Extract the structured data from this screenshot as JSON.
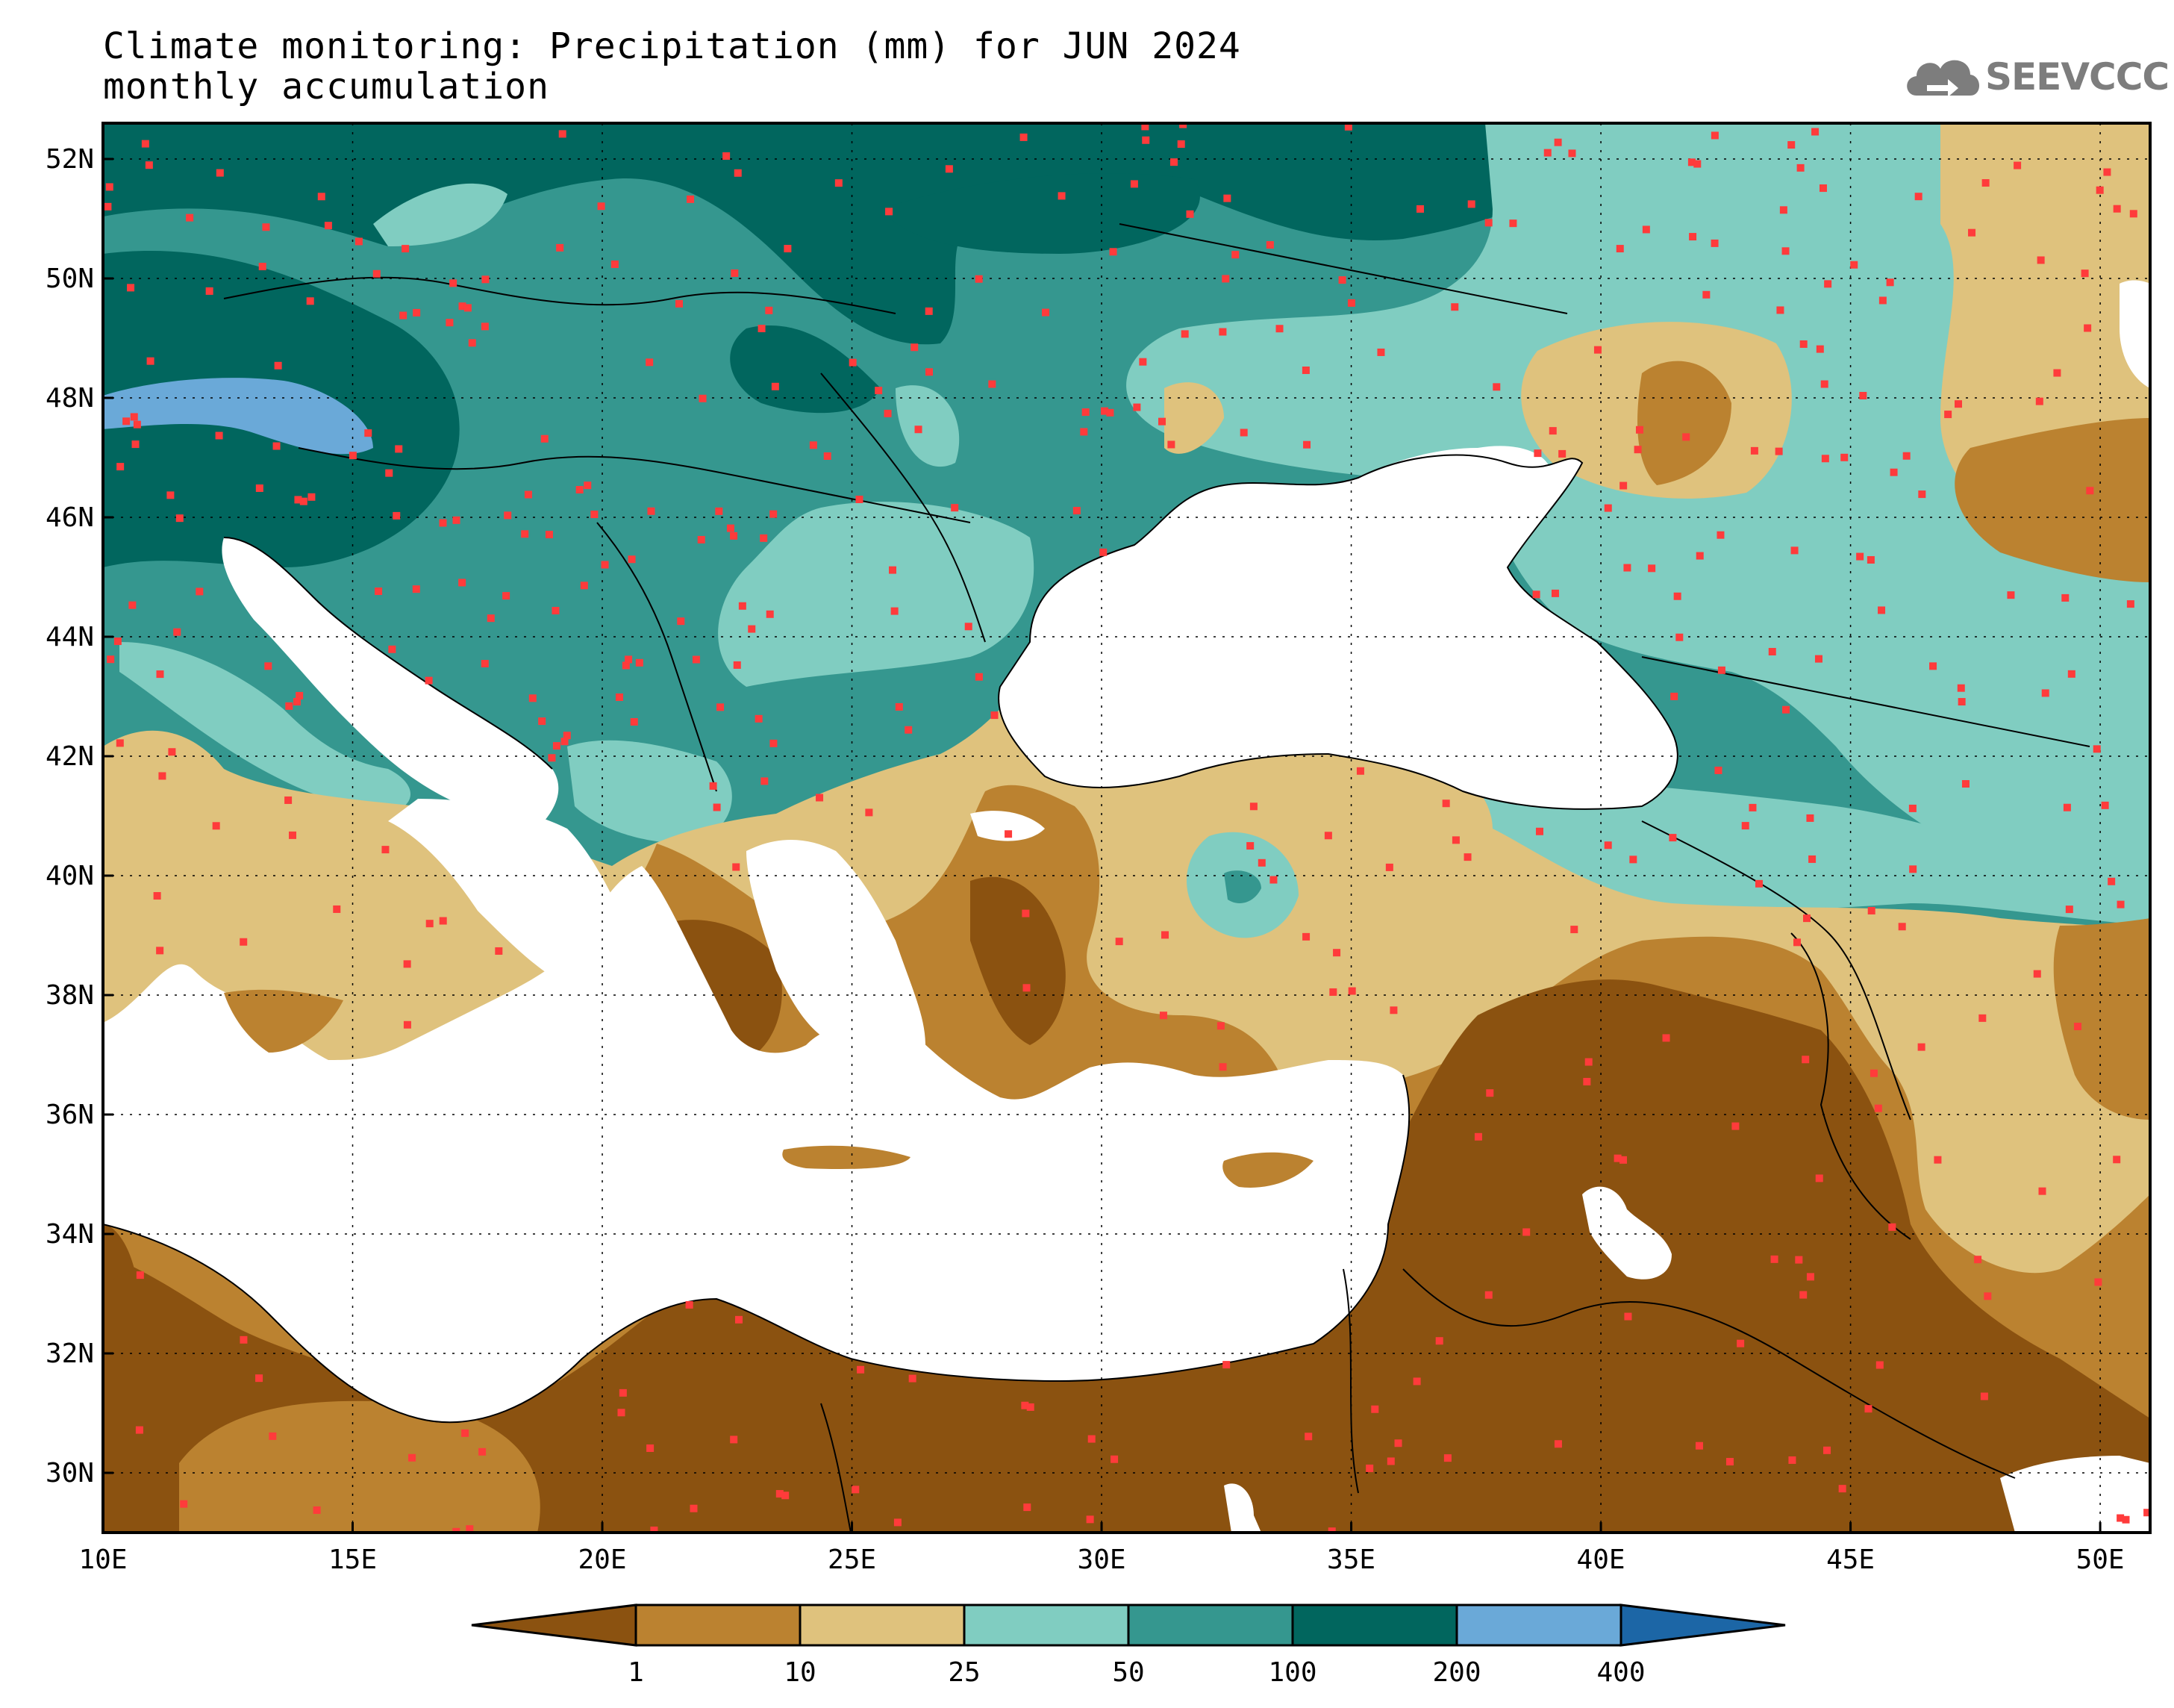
{
  "header": {
    "title_line1": "Climate monitoring: Precipitation (mm) for JUN 2024",
    "title_line2": "monthly accumulation"
  },
  "logo": {
    "text": "SEEVCCC",
    "icon": "cloud-icon",
    "color": "#7d7d7d"
  },
  "map": {
    "lon_range": [
      10,
      51
    ],
    "lat_range": [
      29,
      52.6
    ],
    "lon_ticks": [
      "10E",
      "15E",
      "20E",
      "25E",
      "30E",
      "35E",
      "40E",
      "45E",
      "50E"
    ],
    "lat_ticks": [
      "30N",
      "32N",
      "34N",
      "36N",
      "38N",
      "40N",
      "42N",
      "44N",
      "46N",
      "48N",
      "50N",
      "52N"
    ],
    "gridlines": "dotted",
    "station_marker_color": "#ff3b3b"
  },
  "legend": {
    "unit": "mm",
    "levels": [
      "1",
      "10",
      "25",
      "50",
      "100",
      "200",
      "400"
    ],
    "colors": [
      "#8b5210",
      "#bb8230",
      "#dfc27d",
      "#80cdc1",
      "#35978f",
      "#01665e",
      "#6aa9d8",
      "#1c66a6"
    ]
  }
}
